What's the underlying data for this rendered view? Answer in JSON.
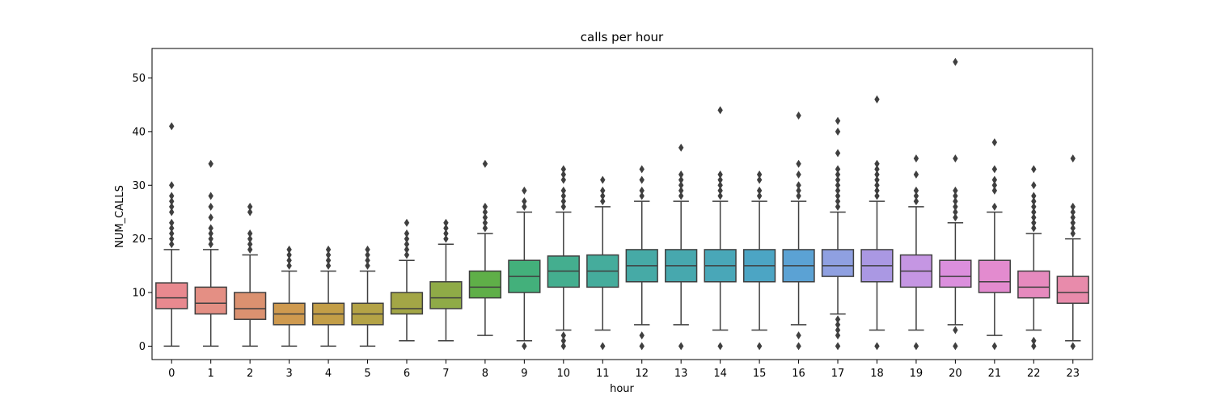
{
  "chart_data": {
    "type": "box",
    "title": "calls per hour",
    "xlabel": "hour",
    "ylabel": "NUM_CALLS",
    "ylim": [
      -2.5,
      55.5
    ],
    "yticks": [
      "0",
      "10",
      "20",
      "30",
      "40",
      "50"
    ],
    "grid": false,
    "legend": "none",
    "categories": [
      "0",
      "1",
      "2",
      "3",
      "4",
      "5",
      "6",
      "7",
      "8",
      "9",
      "10",
      "11",
      "12",
      "13",
      "14",
      "15",
      "16",
      "17",
      "18",
      "19",
      "20",
      "21",
      "22",
      "23"
    ],
    "boxes": [
      {
        "q1": 7,
        "median": 9,
        "q3": 11.8,
        "whisker_low": 0,
        "whisker_high": 18,
        "outliers": [
          19,
          20,
          21,
          22,
          23,
          25,
          26,
          27,
          28,
          30,
          41
        ],
        "color": "#e8898f"
      },
      {
        "q1": 6,
        "median": 8,
        "q3": 11,
        "whisker_low": 0,
        "whisker_high": 18,
        "outliers": [
          19,
          20,
          21,
          22,
          24,
          26,
          28,
          34
        ],
        "color": "#e48f84"
      },
      {
        "q1": 5,
        "median": 7,
        "q3": 10,
        "whisker_low": 0,
        "whisker_high": 17,
        "outliers": [
          18,
          19,
          20,
          21,
          25,
          26
        ],
        "color": "#db9170"
      },
      {
        "q1": 4,
        "median": 6,
        "q3": 8,
        "whisker_low": 0,
        "whisker_high": 14,
        "outliers": [
          15,
          16,
          17,
          18
        ],
        "color": "#cf9a4f"
      },
      {
        "q1": 4,
        "median": 6,
        "q3": 8,
        "whisker_low": 0,
        "whisker_high": 14,
        "outliers": [
          15,
          16,
          17,
          18
        ],
        "color": "#c39e47"
      },
      {
        "q1": 4,
        "median": 6,
        "q3": 8,
        "whisker_low": 0,
        "whisker_high": 14,
        "outliers": [
          15,
          16,
          17,
          18
        ],
        "color": "#b4a346"
      },
      {
        "q1": 6,
        "median": 7,
        "q3": 10,
        "whisker_low": 1,
        "whisker_high": 16,
        "outliers": [
          17,
          18,
          19,
          20,
          21,
          23
        ],
        "color": "#a3a646"
      },
      {
        "q1": 7,
        "median": 9,
        "q3": 12,
        "whisker_low": 1,
        "whisker_high": 19,
        "outliers": [
          20,
          21,
          22,
          23
        ],
        "color": "#8fab47"
      },
      {
        "q1": 9,
        "median": 11,
        "q3": 14,
        "whisker_low": 2,
        "whisker_high": 21,
        "outliers": [
          22,
          23,
          24,
          25,
          26,
          34
        ],
        "color": "#5faf48"
      },
      {
        "q1": 10,
        "median": 13,
        "q3": 16,
        "whisker_low": 1,
        "whisker_high": 25,
        "outliers": [
          0,
          26,
          27,
          29
        ],
        "color": "#43b07b"
      },
      {
        "q1": 11,
        "median": 14,
        "q3": 16.8,
        "whisker_low": 3,
        "whisker_high": 25,
        "outliers": [
          0,
          1,
          2,
          26,
          27,
          28,
          29,
          31,
          32,
          33
        ],
        "color": "#44ae8f"
      },
      {
        "q1": 11,
        "median": 14,
        "q3": 17,
        "whisker_low": 3,
        "whisker_high": 26,
        "outliers": [
          0,
          27,
          28,
          29,
          31
        ],
        "color": "#45ac9c"
      },
      {
        "q1": 12,
        "median": 15,
        "q3": 18,
        "whisker_low": 4,
        "whisker_high": 27,
        "outliers": [
          0,
          2,
          28,
          29,
          31,
          33
        ],
        "color": "#46aaa6"
      },
      {
        "q1": 12,
        "median": 15,
        "q3": 18,
        "whisker_low": 4,
        "whisker_high": 27,
        "outliers": [
          0,
          28,
          29,
          30,
          31,
          32,
          37
        ],
        "color": "#47a8ae"
      },
      {
        "q1": 12,
        "median": 15,
        "q3": 18,
        "whisker_low": 3,
        "whisker_high": 27,
        "outliers": [
          0,
          28,
          29,
          30,
          31,
          32,
          44
        ],
        "color": "#49a7b8"
      },
      {
        "q1": 12,
        "median": 15,
        "q3": 18,
        "whisker_low": 3,
        "whisker_high": 27,
        "outliers": [
          0,
          28,
          29,
          31,
          32
        ],
        "color": "#4ca5c4"
      },
      {
        "q1": 12,
        "median": 15,
        "q3": 18,
        "whisker_low": 4,
        "whisker_high": 27,
        "outliers": [
          0,
          2,
          28,
          29,
          30,
          32,
          34,
          43
        ],
        "color": "#5ba2d4"
      },
      {
        "q1": 13,
        "median": 15,
        "q3": 18,
        "whisker_low": 6,
        "whisker_high": 25,
        "outliers": [
          0,
          2,
          3,
          4,
          5,
          26,
          27,
          28,
          29,
          30,
          31,
          32,
          33,
          36,
          40,
          42
        ],
        "color": "#8fa0e1"
      },
      {
        "q1": 12,
        "median": 15,
        "q3": 18,
        "whisker_low": 3,
        "whisker_high": 27,
        "outliers": [
          0,
          28,
          29,
          30,
          31,
          32,
          33,
          34,
          46
        ],
        "color": "#aa98e3"
      },
      {
        "q1": 11,
        "median": 14,
        "q3": 17,
        "whisker_low": 3,
        "whisker_high": 26,
        "outliers": [
          0,
          27,
          28,
          29,
          32,
          35
        ],
        "color": "#c596e3"
      },
      {
        "q1": 11,
        "median": 13,
        "q3": 16,
        "whisker_low": 4,
        "whisker_high": 23,
        "outliers": [
          0,
          3,
          24,
          25,
          26,
          27,
          28,
          29,
          35,
          53
        ],
        "color": "#db8fdd"
      },
      {
        "q1": 10,
        "median": 12,
        "q3": 16,
        "whisker_low": 2,
        "whisker_high": 25,
        "outliers": [
          0,
          26,
          29,
          30,
          31,
          33,
          38
        ],
        "color": "#e38bcf"
      },
      {
        "q1": 9,
        "median": 11,
        "q3": 14,
        "whisker_low": 3,
        "whisker_high": 21,
        "outliers": [
          0,
          1,
          22,
          23,
          24,
          25,
          26,
          27,
          28,
          30,
          33
        ],
        "color": "#e68abe"
      },
      {
        "q1": 8,
        "median": 10,
        "q3": 13,
        "whisker_low": 1,
        "whisker_high": 20,
        "outliers": [
          0,
          21,
          22,
          23,
          24,
          25,
          26,
          35
        ],
        "color": "#e88bab"
      }
    ],
    "line_color": "#3f3f3f"
  }
}
